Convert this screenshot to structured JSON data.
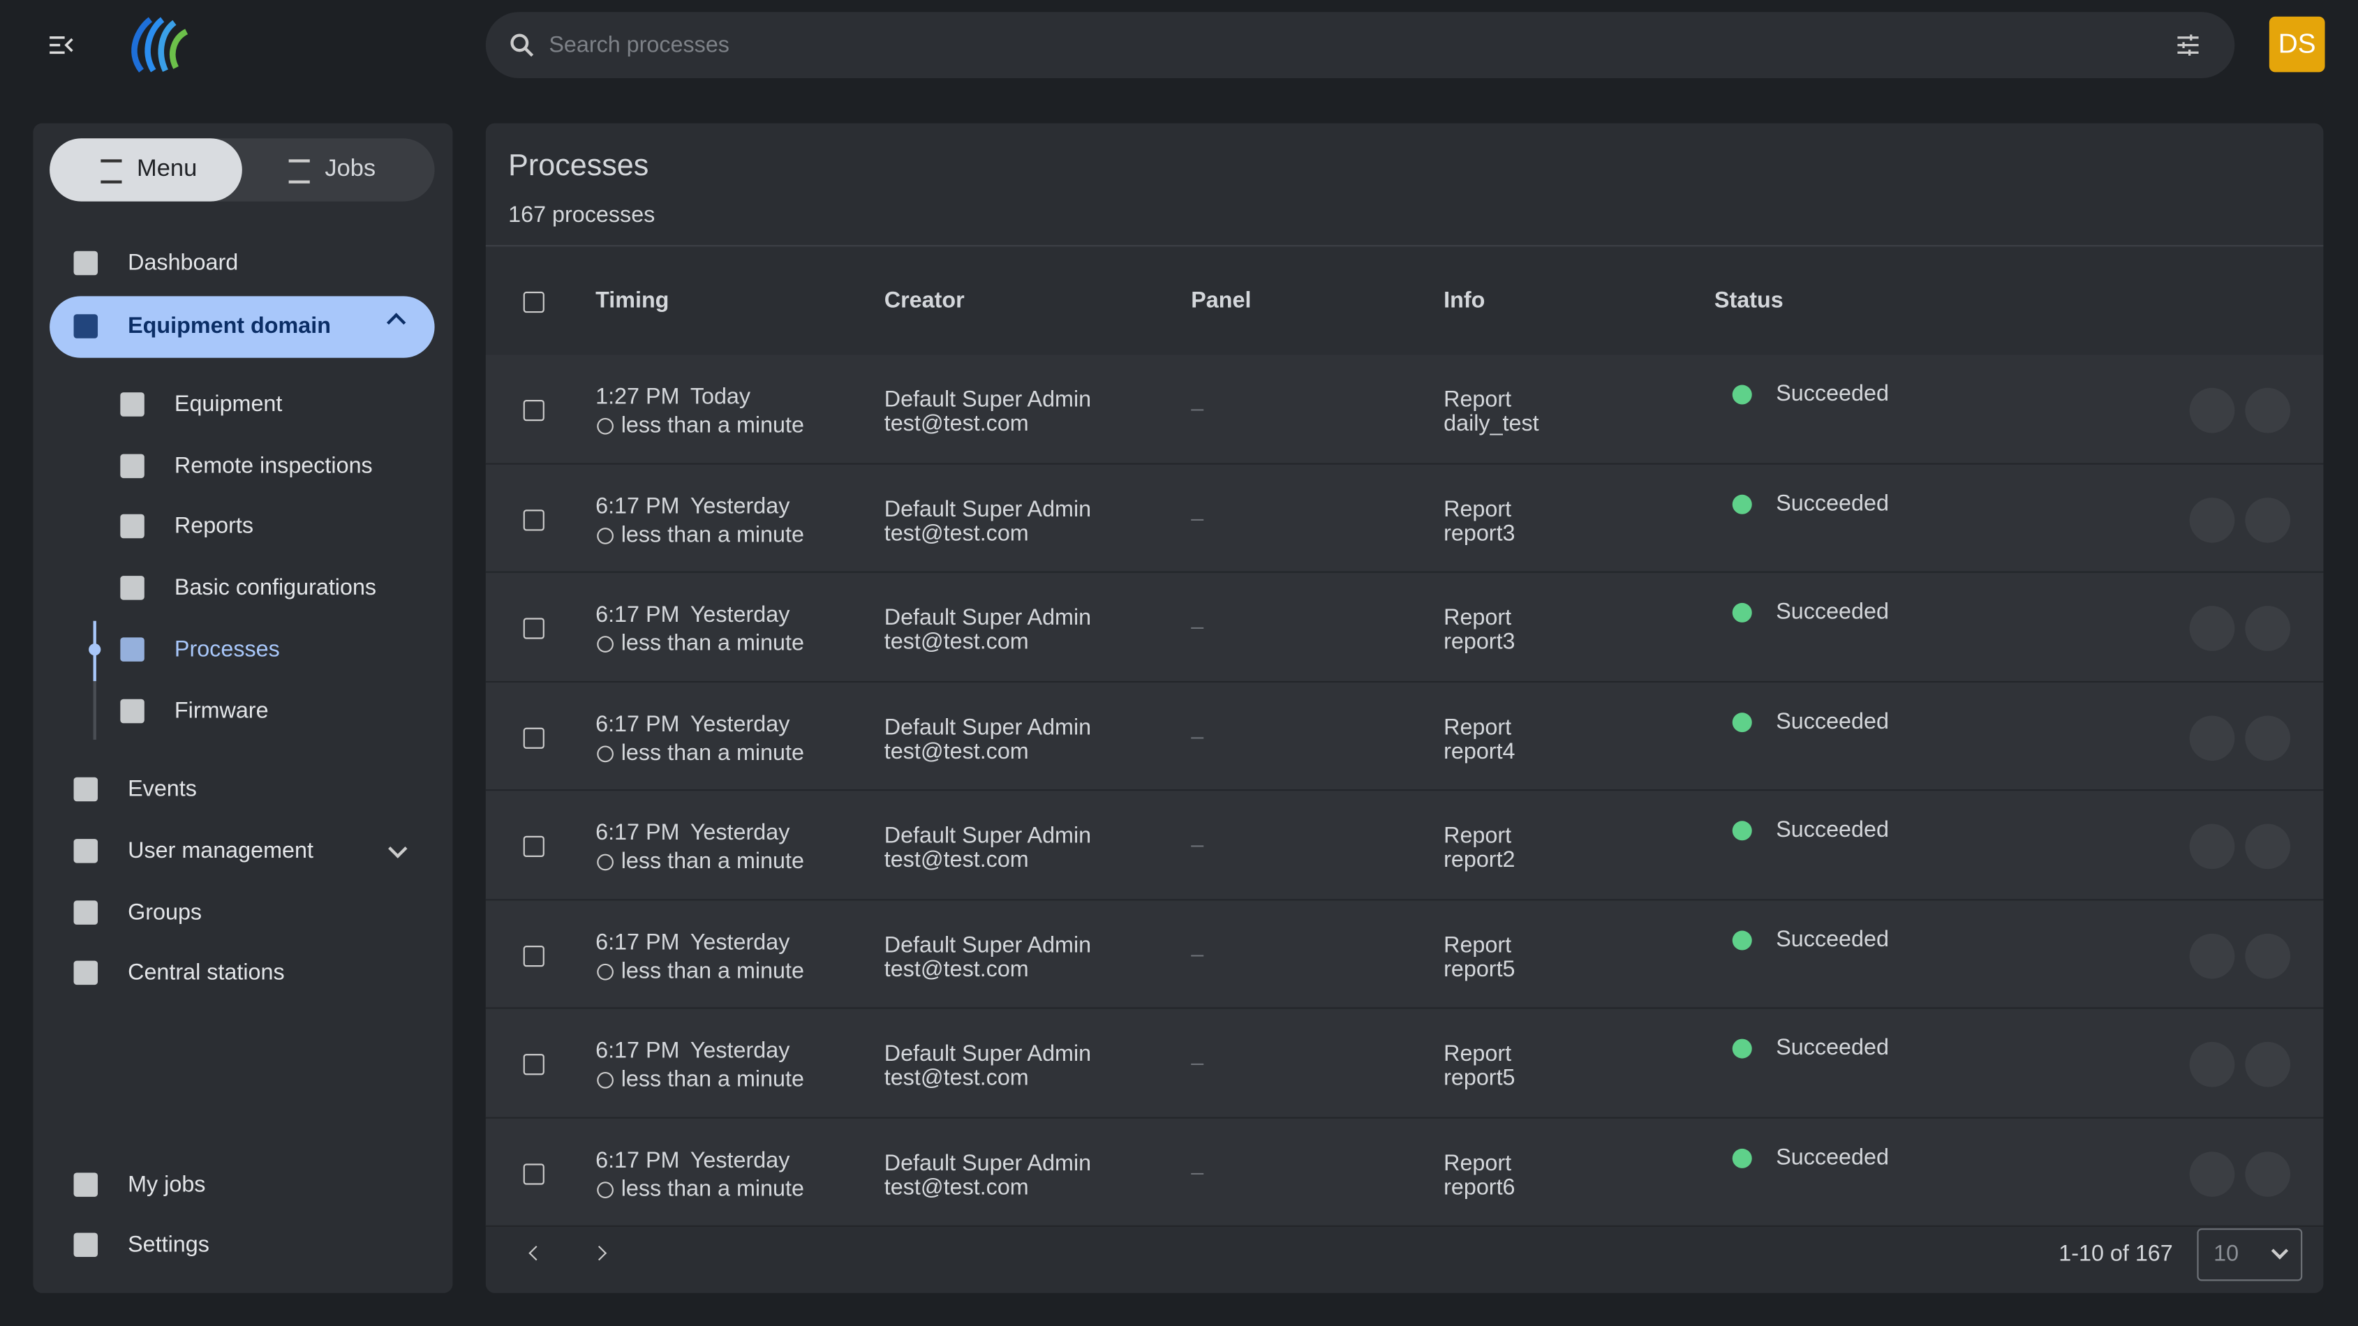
{
  "header": {
    "search_placeholder": "Search processes",
    "avatar": "DS"
  },
  "sidebar": {
    "tabs": [
      "Menu",
      "Jobs"
    ],
    "items": [
      "Dashboard",
      "Equipment domain"
    ],
    "sub_items": [
      "Equipment",
      "Remote inspections",
      "Reports",
      "Basic configurations",
      "Processes",
      "Firmware"
    ],
    "more_items": [
      "Events",
      "User management",
      "Groups",
      "Central stations"
    ],
    "bottom_items": [
      "My jobs",
      "Settings"
    ]
  },
  "table": {
    "title": "Processes",
    "subtitle": "167 processes",
    "columns": [
      "Timing",
      "Creator",
      "Panel",
      "Info",
      "Status"
    ],
    "rows": [
      {
        "time": "1:27 PM",
        "day": "Today",
        "duration": "less than a minute",
        "creator": "Default Super Admin",
        "email": "test@test.com",
        "panel": "–",
        "info_type": "Report",
        "info_name": "daily_test",
        "status": "Succeeded"
      },
      {
        "time": "6:17 PM",
        "day": "Yesterday",
        "duration": "less than a minute",
        "creator": "Default Super Admin",
        "email": "test@test.com",
        "panel": "–",
        "info_type": "Report",
        "info_name": "report3",
        "status": "Succeeded"
      },
      {
        "time": "6:17 PM",
        "day": "Yesterday",
        "duration": "less than a minute",
        "creator": "Default Super Admin",
        "email": "test@test.com",
        "panel": "–",
        "info_type": "Report",
        "info_name": "report3",
        "status": "Succeeded"
      },
      {
        "time": "6:17 PM",
        "day": "Yesterday",
        "duration": "less than a minute",
        "creator": "Default Super Admin",
        "email": "test@test.com",
        "panel": "–",
        "info_type": "Report",
        "info_name": "report4",
        "status": "Succeeded"
      },
      {
        "time": "6:17 PM",
        "day": "Yesterday",
        "duration": "less than a minute",
        "creator": "Default Super Admin",
        "email": "test@test.com",
        "panel": "–",
        "info_type": "Report",
        "info_name": "report2",
        "status": "Succeeded"
      },
      {
        "time": "6:17 PM",
        "day": "Yesterday",
        "duration": "less than a minute",
        "creator": "Default Super Admin",
        "email": "test@test.com",
        "panel": "–",
        "info_type": "Report",
        "info_name": "report5",
        "status": "Succeeded"
      },
      {
        "time": "6:17 PM",
        "day": "Yesterday",
        "duration": "less than a minute",
        "creator": "Default Super Admin",
        "email": "test@test.com",
        "panel": "–",
        "info_type": "Report",
        "info_name": "report5",
        "status": "Succeeded"
      },
      {
        "time": "6:17 PM",
        "day": "Yesterday",
        "duration": "less than a minute",
        "creator": "Default Super Admin",
        "email": "test@test.com",
        "panel": "–",
        "info_type": "Report",
        "info_name": "report6",
        "status": "Succeeded"
      }
    ],
    "pagination": {
      "range": "1-10 of 167",
      "page_size": "10"
    }
  }
}
